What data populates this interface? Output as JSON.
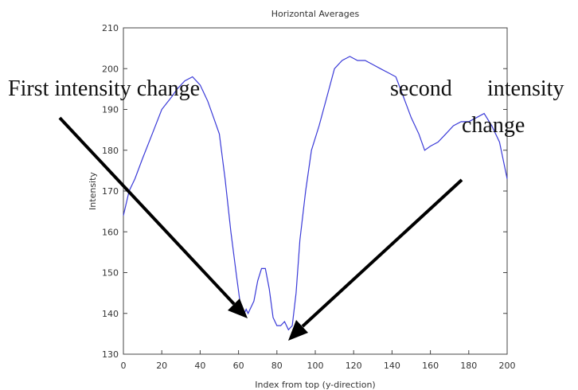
{
  "chart_data": {
    "type": "line",
    "title": "Horizontal Averages",
    "xlabel": "Index from top (y-direction)",
    "ylabel": "Intensity",
    "xlim": [
      0,
      200
    ],
    "ylim": [
      130,
      210
    ],
    "x_ticks": [
      0,
      20,
      40,
      60,
      80,
      100,
      120,
      140,
      160,
      180,
      200
    ],
    "y_ticks": [
      130,
      140,
      150,
      160,
      170,
      180,
      190,
      200,
      210
    ],
    "grid": false,
    "line_color": "#3a3ad8",
    "series": [
      {
        "x": [
          0,
          3,
          6,
          10,
          15,
          20,
          25,
          28,
          32,
          36,
          40,
          44,
          47,
          50,
          53,
          56,
          59,
          61,
          63,
          64,
          65,
          68,
          70,
          72,
          74,
          76,
          78,
          80,
          82,
          84,
          86,
          88,
          90,
          92,
          95,
          98,
          102,
          106,
          110,
          114,
          118,
          122,
          126,
          130,
          134,
          138,
          142,
          146,
          150,
          154,
          157,
          160,
          164,
          168,
          172,
          176,
          180,
          184,
          188,
          192,
          196,
          200
        ],
        "y": [
          164,
          170,
          173,
          178,
          184,
          190,
          193,
          195,
          197,
          198,
          196,
          192,
          188,
          184,
          173,
          160,
          149,
          142,
          140,
          141,
          140,
          143,
          148,
          151,
          151,
          146,
          139,
          137,
          137,
          138,
          136,
          137,
          145,
          158,
          170,
          180,
          186,
          193,
          200,
          202,
          203,
          202,
          202,
          201,
          200,
          199,
          198,
          193,
          188,
          184,
          180,
          181,
          182,
          184,
          186,
          187,
          187,
          188,
          189,
          186,
          182,
          173
        ]
      }
    ],
    "annotations": [
      {
        "text": "First intensity change"
      },
      {
        "text": "second"
      },
      {
        "text": "intensity"
      },
      {
        "text": "change"
      }
    ]
  }
}
